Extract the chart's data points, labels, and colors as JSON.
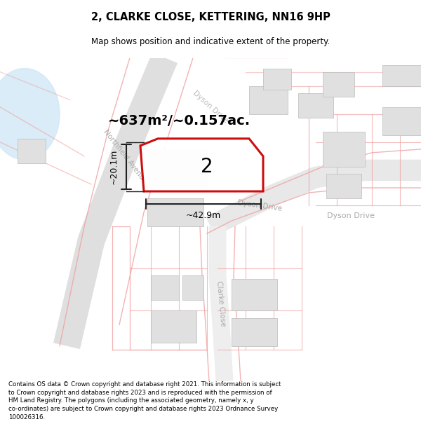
{
  "title": "2, CLARKE CLOSE, KETTERING, NN16 9HP",
  "subtitle": "Map shows position and indicative extent of the property.",
  "area_text": "~637m²/~0.157ac.",
  "property_number": "2",
  "dim_width": "~42.9m",
  "dim_height": "~20.1m",
  "footer": "Contains OS data © Crown copyright and database right 2021. This information is subject\nto Crown copyright and database rights 2023 and is reproduced with the permission of\nHM Land Registry. The polygons (including the associated geometry, namely x, y\nco-ordinates) are subject to Crown copyright and database rights 2023 Ordnance Survey\n100026316.",
  "road_color": "#f0a0a0",
  "road_outline_color": "#cccccc",
  "plot_outline_color": "#cc0000",
  "building_fill": "#e0e0e0",
  "building_edge": "#bbbbbb",
  "road_label_color": "#aaaaaa",
  "water_color": "#d0e8f5",
  "dim_line_color": "#222222",
  "map_bg": "#ffffff"
}
